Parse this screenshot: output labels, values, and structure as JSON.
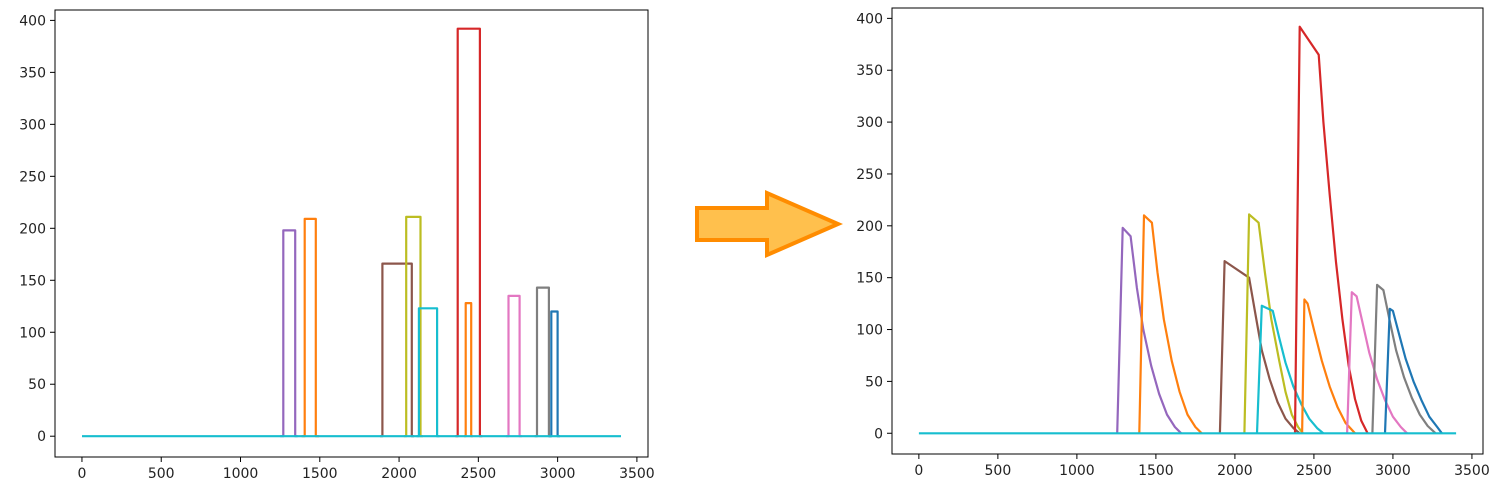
{
  "colors": {
    "blue": "#1f77b4",
    "orange": "#ff7f0e",
    "red": "#d62728",
    "purple": "#9467bd",
    "brown": "#8c564b",
    "pink": "#e377c2",
    "gray": "#7f7f7f",
    "olive": "#bcbd22",
    "cyan": "#17becf",
    "arrow_fill": "#ffc04d",
    "arrow_stroke": "#ff8c00"
  },
  "arrow": {
    "name": "right-arrow-icon",
    "direction": "right"
  },
  "chart_data": [
    {
      "type": "line",
      "panel": "left",
      "xlim": [
        -170,
        3570
      ],
      "ylim": [
        -20,
        410
      ],
      "xticks": [
        0,
        500,
        1000,
        1500,
        2000,
        2500,
        3000,
        3500
      ],
      "yticks": [
        0,
        50,
        100,
        150,
        200,
        250,
        300,
        350,
        400
      ],
      "grid": false,
      "series": [
        {
          "color": "#9467bd",
          "x": [
            1250,
            1270,
            1270,
            1345,
            1345,
            1360
          ],
          "y": [
            0,
            0,
            198,
            198,
            0,
            0
          ]
        },
        {
          "color": "#ff7f0e",
          "x": [
            1385,
            1405,
            1405,
            1475,
            1475,
            1495
          ],
          "y": [
            0,
            0,
            209,
            209,
            0,
            0
          ]
        },
        {
          "color": "#8c564b",
          "x": [
            1880,
            1895,
            1895,
            2080,
            2080,
            2095
          ],
          "y": [
            0,
            0,
            166,
            166,
            0,
            0
          ]
        },
        {
          "color": "#bcbd22",
          "x": [
            2030,
            2045,
            2045,
            2135,
            2135,
            2150
          ],
          "y": [
            0,
            0,
            211,
            211,
            0,
            0
          ]
        },
        {
          "color": "#17becf",
          "x": [
            2110,
            2125,
            2125,
            2240,
            2240,
            2255
          ],
          "y": [
            0,
            0,
            123,
            123,
            0,
            0
          ]
        },
        {
          "color": "#d62728",
          "x": [
            2355,
            2370,
            2370,
            2510,
            2510,
            2525
          ],
          "y": [
            0,
            0,
            392,
            392,
            0,
            0
          ]
        },
        {
          "color": "#ff7f0e",
          "x": [
            2410,
            2420,
            2420,
            2455,
            2455,
            2465
          ],
          "y": [
            0,
            0,
            128,
            128,
            0,
            0
          ]
        },
        {
          "color": "#e377c2",
          "x": [
            2675,
            2690,
            2690,
            2760,
            2760,
            2775
          ],
          "y": [
            0,
            0,
            135,
            135,
            0,
            0
          ]
        },
        {
          "color": "#7f7f7f",
          "x": [
            2855,
            2870,
            2870,
            2945,
            2945,
            2960
          ],
          "y": [
            0,
            0,
            143,
            143,
            0,
            0
          ]
        },
        {
          "color": "#1f77b4",
          "x": [
            2945,
            2960,
            2960,
            3000,
            3000,
            3015
          ],
          "y": [
            0,
            0,
            120,
            120,
            0,
            0
          ]
        },
        {
          "color": "#17becf",
          "x": [
            0,
            3400
          ],
          "y": [
            0,
            0
          ]
        }
      ]
    },
    {
      "type": "line",
      "panel": "right",
      "xlim": [
        -170,
        3570
      ],
      "ylim": [
        -20,
        410
      ],
      "xticks": [
        0,
        500,
        1000,
        1500,
        2000,
        2500,
        3000,
        3500
      ],
      "yticks": [
        0,
        50,
        100,
        150,
        200,
        250,
        300,
        350,
        400
      ],
      "grid": false,
      "series": [
        {
          "color": "#9467bd",
          "x": [
            1255,
            1290,
            1340,
            1380,
            1420,
            1470,
            1520,
            1570,
            1620,
            1660
          ],
          "y": [
            0,
            198,
            190,
            140,
            100,
            65,
            38,
            18,
            6,
            0
          ]
        },
        {
          "color": "#ff7f0e",
          "x": [
            1395,
            1425,
            1475,
            1510,
            1550,
            1600,
            1650,
            1700,
            1750,
            1790
          ],
          "y": [
            0,
            210,
            203,
            155,
            110,
            70,
            40,
            18,
            6,
            0
          ]
        },
        {
          "color": "#8c564b",
          "x": [
            1905,
            1935,
            2090,
            2130,
            2170,
            2220,
            2270,
            2320,
            2370,
            2410
          ],
          "y": [
            0,
            166,
            150,
            115,
            80,
            52,
            30,
            14,
            5,
            0
          ]
        },
        {
          "color": "#bcbd22",
          "x": [
            2060,
            2090,
            2150,
            2190,
            2230,
            2280,
            2320,
            2360,
            2400,
            2430
          ],
          "y": [
            0,
            211,
            203,
            155,
            110,
            70,
            40,
            18,
            6,
            0
          ]
        },
        {
          "color": "#17becf",
          "x": [
            2140,
            2170,
            2240,
            2280,
            2320,
            2370,
            2420,
            2470,
            2520,
            2560
          ],
          "y": [
            0,
            123,
            118,
            92,
            68,
            45,
            28,
            14,
            5,
            0
          ]
        },
        {
          "color": "#d62728",
          "x": [
            2380,
            2410,
            2530,
            2560,
            2600,
            2640,
            2680,
            2720,
            2760,
            2800,
            2840
          ],
          "y": [
            0,
            392,
            365,
            300,
            230,
            165,
            110,
            65,
            33,
            12,
            0
          ]
        },
        {
          "color": "#ff7f0e",
          "x": [
            2425,
            2440,
            2460,
            2500,
            2550,
            2600,
            2650,
            2700,
            2760
          ],
          "y": [
            0,
            129,
            125,
            100,
            70,
            45,
            25,
            10,
            0
          ]
        },
        {
          "color": "#e377c2",
          "x": [
            2710,
            2740,
            2770,
            2810,
            2850,
            2900,
            2950,
            3000,
            3050,
            3090
          ],
          "y": [
            0,
            136,
            132,
            105,
            78,
            52,
            32,
            16,
            6,
            0
          ]
        },
        {
          "color": "#7f7f7f",
          "x": [
            2870,
            2900,
            2940,
            2980,
            3020,
            3070,
            3120,
            3170,
            3220,
            3270
          ],
          "y": [
            0,
            143,
            138,
            108,
            80,
            54,
            34,
            18,
            7,
            0
          ]
        },
        {
          "color": "#1f77b4",
          "x": [
            2950,
            2980,
            3000,
            3040,
            3080,
            3130,
            3180,
            3230,
            3280,
            3310
          ],
          "y": [
            0,
            120,
            118,
            95,
            72,
            50,
            32,
            16,
            6,
            0
          ]
        },
        {
          "color": "#17becf",
          "x": [
            0,
            3400
          ],
          "y": [
            0,
            0
          ]
        }
      ]
    }
  ]
}
